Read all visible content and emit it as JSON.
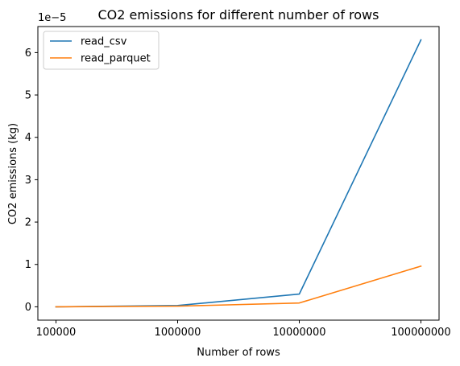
{
  "chart_data": {
    "type": "line",
    "title": "CO2 emissions for different number of rows",
    "xlabel": "Number of rows",
    "ylabel": "CO2 emissions (kg)",
    "y_offset_label": "1e−5",
    "categories": [
      "100000",
      "1000000",
      "10000000",
      "100000000"
    ],
    "series": [
      {
        "name": "read_csv",
        "color": "#1f77b4",
        "values": [
          0.0,
          3e-07,
          3e-06,
          6.3e-05
        ]
      },
      {
        "name": "read_parquet",
        "color": "#ff7f0e",
        "values": [
          0.0,
          1.5e-07,
          9e-07,
          9.6e-06
        ]
      }
    ],
    "yticks": [
      0,
      1,
      2,
      3,
      4,
      5,
      6
    ],
    "ytick_labels": [
      "0",
      "1",
      "2",
      "3",
      "4",
      "5",
      "6"
    ],
    "ylim": [
      -3.15e-06,
      6.615e-05
    ],
    "ytick_scale": 1e-05,
    "grid": false,
    "legend_position": "top-left"
  }
}
